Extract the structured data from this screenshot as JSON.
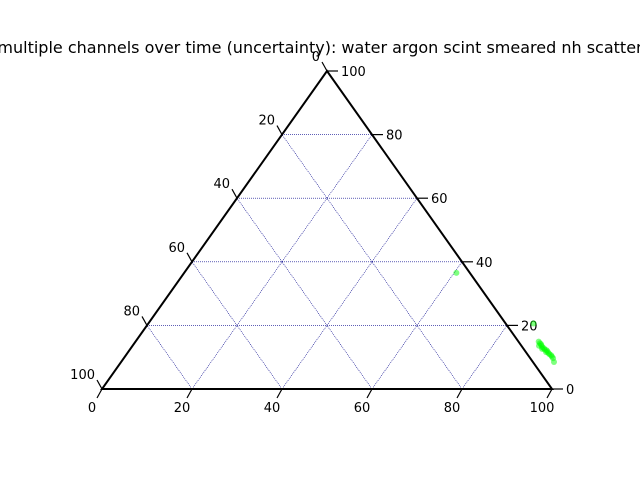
{
  "chart_data": {
    "type": "scatter",
    "subtype": "ternary",
    "title": "multiple channels over time (uncertainty): water argon scint smeared nh scatter",
    "axes": {
      "bottom": {
        "ticks": [
          0,
          20,
          40,
          60,
          80,
          100
        ]
      },
      "right": {
        "ticks": [
          0,
          20,
          40,
          60,
          80,
          100
        ]
      },
      "left": {
        "ticks": [
          0,
          20,
          40,
          60,
          80,
          100
        ]
      }
    },
    "grid": true,
    "grid_color": "#00008b",
    "marker_color": "#00ff00",
    "points": [
      {
        "bottom": 60.5,
        "right": 36.5
      },
      {
        "bottom": 85.6,
        "right": 20.6
      },
      {
        "bottom": 89.6,
        "right": 14.9
      },
      {
        "bottom": 90.1,
        "right": 14.4
      },
      {
        "bottom": 90.5,
        "right": 14.1
      },
      {
        "bottom": 90.9,
        "right": 13.6
      },
      {
        "bottom": 91.3,
        "right": 13.1
      },
      {
        "bottom": 91.8,
        "right": 12.8
      },
      {
        "bottom": 92.2,
        "right": 12.4
      },
      {
        "bottom": 92.7,
        "right": 12.2
      },
      {
        "bottom": 93.1,
        "right": 11.8
      },
      {
        "bottom": 93.6,
        "right": 11.3
      },
      {
        "bottom": 94.0,
        "right": 10.9
      },
      {
        "bottom": 94.5,
        "right": 10.6
      },
      {
        "bottom": 94.9,
        "right": 10.2
      },
      {
        "bottom": 95.4,
        "right": 9.7
      },
      {
        "bottom": 96.2,
        "right": 8.5
      },
      {
        "bottom": 90.3,
        "right": 13.6
      },
      {
        "bottom": 91.5,
        "right": 12.6
      },
      {
        "bottom": 92.9,
        "right": 11.6
      }
    ]
  }
}
